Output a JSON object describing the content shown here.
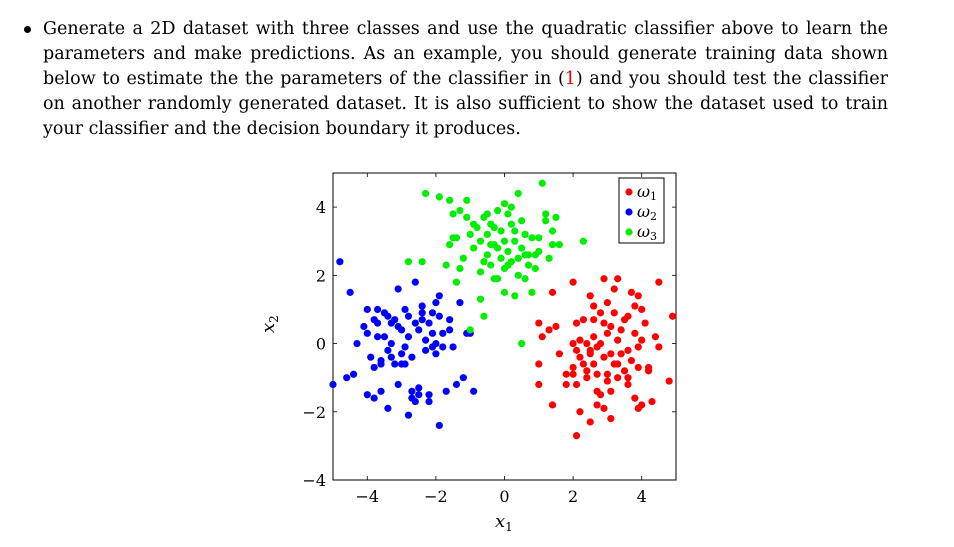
{
  "text": {
    "part1": "Generate a 2D dataset with three classes and use the quadratic classifier above to learn the parameters and make predictions. As an example, you should generate training data shown below to estimate the the parameters of the classifier in (",
    "ref": "1",
    "part2": ") and you should test the classifier on another randomly generated dataset. It is also sufficient to show the dataset used to train your classifier and the decision boundary it produces."
  },
  "chart_data": {
    "type": "scatter",
    "xlabel": "x",
    "xlabel_sub": "1",
    "ylabel": "x",
    "ylabel_sub": "2",
    "xlim": [
      -5,
      5
    ],
    "ylim": [
      -4,
      5
    ],
    "x_ticks": [
      -4,
      -2,
      0,
      2,
      4
    ],
    "y_ticks": [
      -4,
      -2,
      0,
      2,
      4
    ],
    "legend_position": "top-right",
    "series": [
      {
        "name": "ω",
        "name_sub": "1",
        "color": "#ff0000",
        "points": [
          [
            1.0,
            0.6
          ],
          [
            1.1,
            0.2
          ],
          [
            1.3,
            0.4
          ],
          [
            1.4,
            1.5
          ],
          [
            1.5,
            0.5
          ],
          [
            1.6,
            -0.3
          ],
          [
            1.0,
            -0.6
          ],
          [
            1.0,
            -1.2
          ],
          [
            1.4,
            -1.8
          ],
          [
            1.8,
            -1.2
          ],
          [
            2.0,
            -0.7
          ],
          [
            2.0,
            0.0
          ],
          [
            2.1,
            -0.2
          ],
          [
            2.2,
            0.1
          ],
          [
            2.2,
            -0.4
          ],
          [
            2.1,
            -1.2
          ],
          [
            2.0,
            1.8
          ],
          [
            2.1,
            0.6
          ],
          [
            2.3,
            0.7
          ],
          [
            2.4,
            -0.8
          ],
          [
            2.4,
            0.0
          ],
          [
            2.5,
            -0.3
          ],
          [
            2.6,
            -0.6
          ],
          [
            2.6,
            0.2
          ],
          [
            2.7,
            -1.4
          ],
          [
            2.7,
            -0.9
          ],
          [
            2.8,
            0.0
          ],
          [
            2.8,
            0.9
          ],
          [
            2.9,
            -0.4
          ],
          [
            2.9,
            1.9
          ],
          [
            3.0,
            -0.9
          ],
          [
            3.0,
            0.3
          ],
          [
            3.0,
            1.2
          ],
          [
            3.1,
            -1.4
          ],
          [
            3.1,
            0.5
          ],
          [
            3.2,
            -0.6
          ],
          [
            3.2,
            0.9
          ],
          [
            3.3,
            -1.0
          ],
          [
            3.3,
            0.1
          ],
          [
            3.3,
            1.9
          ],
          [
            3.4,
            -0.3
          ],
          [
            3.5,
            0.7
          ],
          [
            3.5,
            -0.8
          ],
          [
            3.6,
            0.8
          ],
          [
            3.6,
            -1.2
          ],
          [
            3.7,
            -0.5
          ],
          [
            3.7,
            1.5
          ],
          [
            3.8,
            0.3
          ],
          [
            3.9,
            -0.1
          ],
          [
            3.9,
            -0.7
          ],
          [
            4.0,
            1.0
          ],
          [
            4.0,
            -1.8
          ],
          [
            4.1,
            0.6
          ],
          [
            4.2,
            -0.7
          ],
          [
            4.3,
            -1.7
          ],
          [
            4.4,
            0.2
          ],
          [
            4.5,
            -0.1
          ],
          [
            4.5,
            1.8
          ],
          [
            4.8,
            -1.1
          ],
          [
            4.9,
            0.8
          ],
          [
            2.2,
            -2.0
          ],
          [
            2.1,
            -2.7
          ],
          [
            2.5,
            -2.3
          ],
          [
            2.7,
            -1.8
          ],
          [
            2.9,
            -1.9
          ],
          [
            3.1,
            -2.2
          ],
          [
            3.8,
            -1.6
          ],
          [
            3.9,
            -1.9
          ],
          [
            4.2,
            -0.8
          ],
          [
            2.6,
            0.7
          ],
          [
            3.6,
            -0.2
          ],
          [
            2.9,
            0.6
          ],
          [
            2.4,
            -1.0
          ],
          [
            2.5,
            1.4
          ],
          [
            3.2,
            1.6
          ],
          [
            2.7,
            -0.1
          ],
          [
            3.0,
            -1.1
          ],
          [
            3.4,
            0.4
          ],
          [
            1.8,
            -0.9
          ],
          [
            2.3,
            -0.6
          ],
          [
            3.8,
            1.1
          ],
          [
            2.0,
            -0.9
          ],
          [
            3.6,
            -1.0
          ],
          [
            4.0,
            0.1
          ],
          [
            2.8,
            -1.5
          ],
          [
            3.1,
            -0.3
          ],
          [
            2.6,
            1.1
          ],
          [
            3.3,
            -0.6
          ],
          [
            2.5,
            -0.2
          ],
          [
            3.9,
            1.4
          ]
        ]
      },
      {
        "name": "ω",
        "name_sub": "2",
        "color": "#0000ff",
        "points": [
          [
            -4.8,
            2.4
          ],
          [
            -4.5,
            1.5
          ],
          [
            -4.4,
            -0.9
          ],
          [
            -4.3,
            0.0
          ],
          [
            -4.1,
            0.5
          ],
          [
            -4.0,
            1.0
          ],
          [
            -4.0,
            0.3
          ],
          [
            -3.9,
            -0.4
          ],
          [
            -3.8,
            -1.6
          ],
          [
            -3.8,
            -0.7
          ],
          [
            -3.7,
            0.6
          ],
          [
            -3.7,
            1.0
          ],
          [
            -3.6,
            -1.4
          ],
          [
            -3.6,
            -0.5
          ],
          [
            -3.5,
            0.2
          ],
          [
            -3.5,
            0.9
          ],
          [
            -3.4,
            -0.2
          ],
          [
            -3.4,
            -1.9
          ],
          [
            -3.3,
            0.6
          ],
          [
            -3.3,
            0.0
          ],
          [
            -3.2,
            -0.6
          ],
          [
            -3.2,
            0.7
          ],
          [
            -3.1,
            -1.2
          ],
          [
            -3.1,
            1.6
          ],
          [
            -3.0,
            0.4
          ],
          [
            -3.0,
            -0.3
          ],
          [
            -2.9,
            -0.6
          ],
          [
            -2.9,
            1.0
          ],
          [
            -2.8,
            -2.1
          ],
          [
            -2.8,
            0.2
          ],
          [
            -2.7,
            -1.4
          ],
          [
            -2.7,
            -0.4
          ],
          [
            -2.6,
            0.6
          ],
          [
            -2.6,
            1.8
          ],
          [
            -2.5,
            -1.5
          ],
          [
            -2.5,
            -1.3
          ],
          [
            -2.4,
            0.7
          ],
          [
            -2.4,
            1.1
          ],
          [
            -2.3,
            0.1
          ],
          [
            -2.3,
            -0.2
          ],
          [
            -2.2,
            -1.5
          ],
          [
            -2.2,
            0.6
          ],
          [
            -2.1,
            -0.1
          ],
          [
            -2.1,
            0.9
          ],
          [
            -2.0,
            1.2
          ],
          [
            -2.0,
            -0.3
          ],
          [
            -1.9,
            0.8
          ],
          [
            -1.9,
            -2.4
          ],
          [
            -1.8,
            0.3
          ],
          [
            -1.7,
            -1.4
          ],
          [
            -1.6,
            0.4
          ],
          [
            -1.5,
            -0.1
          ],
          [
            -1.4,
            -1.2
          ],
          [
            -1.3,
            1.2
          ],
          [
            -1.2,
            -1.0
          ],
          [
            -1.1,
            0.3
          ],
          [
            -1.0,
            0.3
          ],
          [
            -0.9,
            -1.4
          ],
          [
            -5.0,
            -1.2
          ],
          [
            -4.6,
            -1.0
          ],
          [
            -4.0,
            -1.5
          ],
          [
            -3.6,
            -0.6
          ],
          [
            -3.3,
            -0.4
          ],
          [
            -2.9,
            -0.1
          ],
          [
            -2.6,
            -1.7
          ],
          [
            -2.2,
            -1.7
          ],
          [
            -2.0,
            0.0
          ],
          [
            -1.8,
            -0.1
          ],
          [
            -2.5,
            0.4
          ],
          [
            -3.1,
            0.5
          ],
          [
            -3.7,
            0.2
          ],
          [
            -2.7,
            -1.6
          ],
          [
            -3.4,
            0.8
          ],
          [
            -2.4,
            0.9
          ],
          [
            -1.9,
            1.4
          ],
          [
            -3.0,
            -0.6
          ],
          [
            -2.8,
            0.8
          ],
          [
            -3.8,
            0.7
          ],
          [
            -2.1,
            0.3
          ],
          [
            -1.6,
            0.7
          ]
        ]
      },
      {
        "name": "ω",
        "name_sub": "3",
        "color": "#00ee00",
        "points": [
          [
            -2.3,
            4.4
          ],
          [
            -1.9,
            4.3
          ],
          [
            -1.6,
            4.2
          ],
          [
            -1.5,
            3.8
          ],
          [
            -1.4,
            3.1
          ],
          [
            -1.3,
            3.9
          ],
          [
            -1.2,
            2.5
          ],
          [
            -1.1,
            3.7
          ],
          [
            -1.0,
            3.2
          ],
          [
            -0.9,
            2.8
          ],
          [
            -0.8,
            3.4
          ],
          [
            -0.7,
            3.0
          ],
          [
            -0.7,
            2.1
          ],
          [
            -0.6,
            3.7
          ],
          [
            -0.5,
            2.6
          ],
          [
            -0.5,
            3.2
          ],
          [
            -0.4,
            2.3
          ],
          [
            -0.4,
            3.5
          ],
          [
            -0.3,
            2.9
          ],
          [
            -0.3,
            1.9
          ],
          [
            -0.2,
            3.9
          ],
          [
            -0.1,
            3.3
          ],
          [
            -0.1,
            2.5
          ],
          [
            0.0,
            2.2
          ],
          [
            0.0,
            3.0
          ],
          [
            0.1,
            3.8
          ],
          [
            0.1,
            2.7
          ],
          [
            0.2,
            2.4
          ],
          [
            0.2,
            3.5
          ],
          [
            0.3,
            3.0
          ],
          [
            0.3,
            1.4
          ],
          [
            0.4,
            4.4
          ],
          [
            0.4,
            2.5
          ],
          [
            0.5,
            3.6
          ],
          [
            0.5,
            2.8
          ],
          [
            0.6,
            1.9
          ],
          [
            0.7,
            2.6
          ],
          [
            0.8,
            3.1
          ],
          [
            0.8,
            1.5
          ],
          [
            0.9,
            2.2
          ],
          [
            1.0,
            3.1
          ],
          [
            1.0,
            2.7
          ],
          [
            1.1,
            4.7
          ],
          [
            1.2,
            3.6
          ],
          [
            1.3,
            2.5
          ],
          [
            1.4,
            2.9
          ],
          [
            1.5,
            3.7
          ],
          [
            1.6,
            2.9
          ],
          [
            2.3,
            3.0
          ],
          [
            -1.4,
            1.8
          ],
          [
            -0.7,
            1.3
          ],
          [
            -0.6,
            0.8
          ],
          [
            -1.0,
            0.4
          ],
          [
            0.5,
            0.0
          ],
          [
            -2.4,
            2.4
          ],
          [
            -2.8,
            2.4
          ],
          [
            -1.7,
            2.3
          ],
          [
            -1.3,
            2.2
          ],
          [
            -0.2,
            1.9
          ],
          [
            -0.9,
            3.5
          ],
          [
            -0.5,
            3.8
          ],
          [
            0.2,
            4.0
          ],
          [
            0.6,
            3.2
          ],
          [
            1.2,
            3.8
          ],
          [
            0.0,
            4.1
          ],
          [
            -0.2,
            2.8
          ],
          [
            0.4,
            2.0
          ],
          [
            -0.6,
            2.4
          ],
          [
            0.9,
            2.6
          ],
          [
            -1.1,
            4.2
          ],
          [
            -1.6,
            2.9
          ],
          [
            -1.5,
            3.1
          ],
          [
            0.0,
            1.5
          ],
          [
            0.7,
            2.3
          ],
          [
            1.4,
            3.3
          ],
          [
            0.3,
            3.3
          ],
          [
            -0.4,
            2.9
          ],
          [
            0.1,
            2.3
          ],
          [
            -0.3,
            3.4
          ],
          [
            0.6,
            2.6
          ]
        ]
      }
    ]
  }
}
